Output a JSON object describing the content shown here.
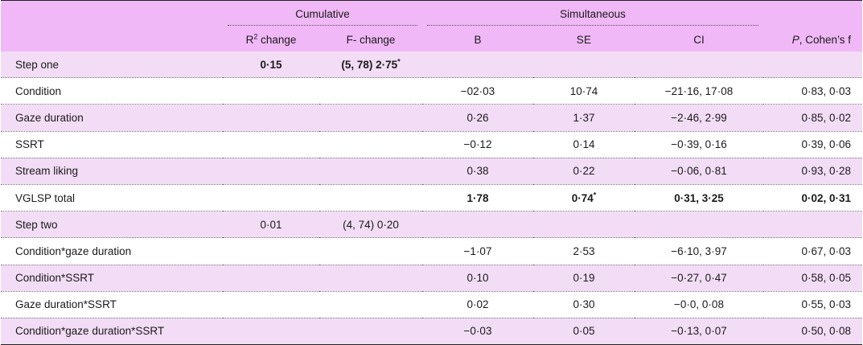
{
  "header": {
    "group_cumulative": "Cumulative",
    "group_simultaneous": "Simultaneous",
    "col_r2_change_prefix": "R",
    "col_r2_change_sup": "2",
    "col_r2_change_suffix": " change",
    "col_f_change": "F- change",
    "col_b": "B",
    "col_se": "SE",
    "col_ci": "CI",
    "col_p_italic": "P",
    "col_p_rest": ", Cohen’s f"
  },
  "rows": [
    {
      "label": "Step one",
      "r2": "0·15",
      "f": "(5, 78) 2·75",
      "f_star": "*",
      "b": "",
      "se": "",
      "se_star": "",
      "ci": "",
      "p": "",
      "bold_r2": true,
      "bold_f": true,
      "bold_stats": false
    },
    {
      "label": "Condition",
      "r2": "",
      "f": "",
      "f_star": "",
      "b": "−02·03",
      "se": "10·74",
      "se_star": "",
      "ci": "−21·16, 17·08",
      "p": "0·83, 0·03",
      "bold_r2": false,
      "bold_f": false,
      "bold_stats": false
    },
    {
      "label": "Gaze duration",
      "r2": "",
      "f": "",
      "f_star": "",
      "b": "0·26",
      "se": "1·37",
      "se_star": "",
      "ci": "−2·46, 2·99",
      "p": "0·85, 0·02",
      "bold_r2": false,
      "bold_f": false,
      "bold_stats": false
    },
    {
      "label": "SSRT",
      "r2": "",
      "f": "",
      "f_star": "",
      "b": "−0·12",
      "se": "0·14",
      "se_star": "",
      "ci": "−0·39, 0·16",
      "p": "0·39, 0·06",
      "bold_r2": false,
      "bold_f": false,
      "bold_stats": false
    },
    {
      "label": "Stream liking",
      "r2": "",
      "f": "",
      "f_star": "",
      "b": "0·38",
      "se": "0·22",
      "se_star": "",
      "ci": "−0·06, 0·81",
      "p": "0·93, 0·28",
      "bold_r2": false,
      "bold_f": false,
      "bold_stats": false
    },
    {
      "label": "VGLSP total",
      "r2": "",
      "f": "",
      "f_star": "",
      "b": "1·78",
      "se": "0·74",
      "se_star": "*",
      "ci": "0·31, 3·25",
      "p": "0·02, 0·31",
      "bold_r2": false,
      "bold_f": false,
      "bold_stats": true
    },
    {
      "label": "Step two",
      "r2": "0·01",
      "f": "(4, 74) 0·20",
      "f_star": "",
      "b": "",
      "se": "",
      "se_star": "",
      "ci": "",
      "p": "",
      "bold_r2": false,
      "bold_f": false,
      "bold_stats": false
    },
    {
      "label": "Condition*gaze duration",
      "r2": "",
      "f": "",
      "f_star": "",
      "b": "−1·07",
      "se": "2·53",
      "se_star": "",
      "ci": "−6·10, 3·97",
      "p": "0·67, 0·03",
      "bold_r2": false,
      "bold_f": false,
      "bold_stats": false
    },
    {
      "label": "Condition*SSRT",
      "r2": "",
      "f": "",
      "f_star": "",
      "b": "0·10",
      "se": "0·19",
      "se_star": "",
      "ci": "−0·27, 0·47",
      "p": "0·58, 0·05",
      "bold_r2": false,
      "bold_f": false,
      "bold_stats": false
    },
    {
      "label": "Gaze duration*SSRT",
      "r2": "",
      "f": "",
      "f_star": "",
      "b": "0·02",
      "se": "0·30",
      "se_star": "",
      "ci": "−0·0, 0·08",
      "p": "0·55, 0·03",
      "bold_r2": false,
      "bold_f": false,
      "bold_stats": false
    },
    {
      "label": "Condition*gaze duration*SSRT",
      "r2": "",
      "f": "",
      "f_star": "",
      "b": "−0·03",
      "se": "0·05",
      "se_star": "",
      "ci": "−0·13, 0·07",
      "p": "0·50, 0·08",
      "bold_r2": false,
      "bold_f": false,
      "bold_stats": false
    }
  ],
  "colors": {
    "header_bg": "#f0b8f6",
    "stripe_bg": "#f3dcf6"
  }
}
